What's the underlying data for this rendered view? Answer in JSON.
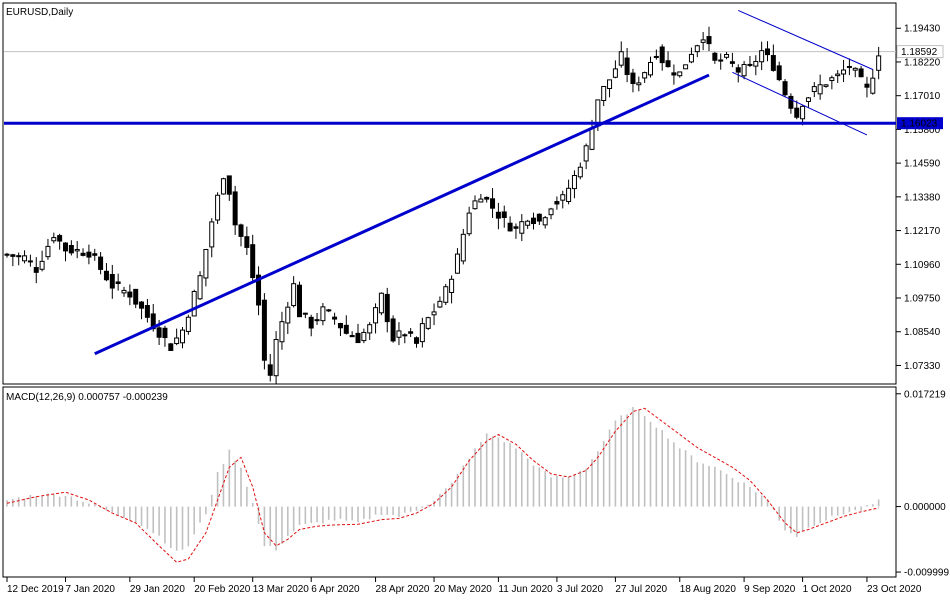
{
  "chart_data": [
    {
      "type": "candlestick",
      "title": "EURUSD,Daily",
      "ylim": [
        1.067,
        1.203
      ],
      "yticks": [
        "1.19430",
        "1.18220",
        "1.17010",
        "1.15800",
        "1.14590",
        "1.13380",
        "1.12170",
        "1.10960",
        "1.09750",
        "1.08540",
        "1.07330"
      ],
      "current_price": {
        "value": 1.18592,
        "label": "1.18592",
        "color": "#c0c0c0"
      },
      "hline": {
        "value": 1.16023,
        "label": "1.16023",
        "color": "#0000cc"
      },
      "trendline": {
        "start": [
          15,
          1.0775
        ],
        "end": [
          120,
          1.1775
        ],
        "color": "#0000cc"
      },
      "channel": [
        {
          "start": [
            125,
            1.2007
          ],
          "end": [
            148,
            1.1795
          ],
          "color": "#0000cc"
        },
        {
          "start": [
            124,
            1.1785
          ],
          "end": [
            147,
            1.156
          ],
          "color": "#0000cc"
        }
      ],
      "x_labels": [
        {
          "i": 0,
          "text": "12 Dec 2019"
        },
        {
          "i": 10,
          "text": "7 Jan 2020"
        },
        {
          "i": 21,
          "text": "29 Jan 2020"
        },
        {
          "i": 32,
          "text": "20 Feb 2020"
        },
        {
          "i": 42,
          "text": "13 Mar 2020"
        },
        {
          "i": 52,
          "text": "6 Apr 2020"
        },
        {
          "i": 63,
          "text": "28 Apr 2020"
        },
        {
          "i": 73,
          "text": "20 May 2020"
        },
        {
          "i": 84,
          "text": "11 Jun 2020"
        },
        {
          "i": 94,
          "text": "3 Jul 2020"
        },
        {
          "i": 104,
          "text": "27 Jul 2020"
        },
        {
          "i": 115,
          "text": "18 Aug 2020"
        },
        {
          "i": 126,
          "text": "9 Sep 2020"
        },
        {
          "i": 136,
          "text": "1 Oct 2020"
        },
        {
          "i": 147,
          "text": "23 Oct 2020"
        }
      ],
      "close_anchors": [
        [
          0,
          1.113
        ],
        [
          3,
          1.112
        ],
        [
          5,
          1.108
        ],
        [
          8,
          1.1205
        ],
        [
          10,
          1.115
        ],
        [
          14,
          1.114
        ],
        [
          18,
          1.102
        ],
        [
          21,
          1.099
        ],
        [
          25,
          1.088
        ],
        [
          28,
          1.08
        ],
        [
          30,
          1.086
        ],
        [
          33,
          1.105
        ],
        [
          35,
          1.125
        ],
        [
          37,
          1.142
        ],
        [
          38,
          1.136
        ],
        [
          39,
          1.124
        ],
        [
          41,
          1.115
        ],
        [
          43,
          1.095
        ],
        [
          44,
          1.075
        ],
        [
          45,
          1.07
        ],
        [
          46,
          1.082
        ],
        [
          48,
          1.096
        ],
        [
          49,
          1.102
        ],
        [
          50,
          1.092
        ],
        [
          52,
          1.088
        ],
        [
          54,
          1.093
        ],
        [
          56,
          1.09
        ],
        [
          58,
          1.085
        ],
        [
          60,
          1.083
        ],
        [
          62,
          1.087
        ],
        [
          64,
          1.098
        ],
        [
          66,
          1.083
        ],
        [
          68,
          1.085
        ],
        [
          70,
          1.081
        ],
        [
          71,
          1.087
        ],
        [
          73,
          1.093
        ],
        [
          75,
          1.1
        ],
        [
          77,
          1.112
        ],
        [
          79,
          1.129
        ],
        [
          81,
          1.135
        ],
        [
          83,
          1.13
        ],
        [
          85,
          1.125
        ],
        [
          87,
          1.122
        ],
        [
          89,
          1.127
        ],
        [
          91,
          1.125
        ],
        [
          93,
          1.131
        ],
        [
          95,
          1.133
        ],
        [
          97,
          1.141
        ],
        [
          99,
          1.151
        ],
        [
          101,
          1.169
        ],
        [
          103,
          1.176
        ],
        [
          105,
          1.184
        ],
        [
          107,
          1.173
        ],
        [
          109,
          1.179
        ],
        [
          111,
          1.186
        ],
        [
          113,
          1.18
        ],
        [
          115,
          1.178
        ],
        [
          117,
          1.186
        ],
        [
          119,
          1.192
        ],
        [
          121,
          1.182
        ],
        [
          123,
          1.183
        ],
        [
          125,
          1.179
        ],
        [
          127,
          1.18
        ],
        [
          129,
          1.186
        ],
        [
          131,
          1.181
        ],
        [
          133,
          1.171
        ],
        [
          135,
          1.163
        ],
        [
          136,
          1.168
        ],
        [
          138,
          1.172
        ],
        [
          140,
          1.175
        ],
        [
          142,
          1.177
        ],
        [
          144,
          1.181
        ],
        [
          146,
          1.175
        ],
        [
          147,
          1.172
        ],
        [
          148,
          1.178
        ],
        [
          149,
          1.1859
        ]
      ]
    },
    {
      "type": "histogram+line",
      "title": "MACD(12,26,9) 0.000757 -0.000239",
      "ylim": [
        -0.0106,
        0.0181
      ],
      "yticks": [
        "0.017219",
        "0.000000",
        "-0.009999"
      ],
      "hist_color": "#c0c0c0",
      "signal_color": "#e01010",
      "hist_anchors": [
        [
          0,
          0.001
        ],
        [
          5,
          0.0018
        ],
        [
          10,
          0.0018
        ],
        [
          14,
          0.0005
        ],
        [
          18,
          -0.001
        ],
        [
          22,
          -0.0022
        ],
        [
          26,
          -0.0045
        ],
        [
          29,
          -0.007
        ],
        [
          31,
          -0.006
        ],
        [
          34,
          -0.001
        ],
        [
          36,
          0.005
        ],
        [
          38,
          0.0085
        ],
        [
          40,
          0.006
        ],
        [
          42,
          0.0005
        ],
        [
          44,
          -0.006
        ],
        [
          46,
          -0.0065
        ],
        [
          48,
          -0.0045
        ],
        [
          50,
          -0.003
        ],
        [
          53,
          -0.0025
        ],
        [
          56,
          -0.002
        ],
        [
          60,
          -0.0025
        ],
        [
          64,
          -0.001
        ],
        [
          67,
          -0.0015
        ],
        [
          70,
          -0.0005
        ],
        [
          73,
          0.001
        ],
        [
          76,
          0.0035
        ],
        [
          79,
          0.0075
        ],
        [
          82,
          0.011
        ],
        [
          84,
          0.0105
        ],
        [
          87,
          0.009
        ],
        [
          90,
          0.0065
        ],
        [
          93,
          0.0045
        ],
        [
          96,
          0.0045
        ],
        [
          99,
          0.006
        ],
        [
          101,
          0.0085
        ],
        [
          104,
          0.013
        ],
        [
          107,
          0.015
        ],
        [
          109,
          0.014
        ],
        [
          112,
          0.0115
        ],
        [
          115,
          0.009
        ],
        [
          118,
          0.007
        ],
        [
          121,
          0.006
        ],
        [
          124,
          0.0045
        ],
        [
          127,
          0.003
        ],
        [
          130,
          0.001
        ],
        [
          133,
          -0.0035
        ],
        [
          135,
          -0.0045
        ],
        [
          137,
          -0.003
        ],
        [
          140,
          -0.002
        ],
        [
          143,
          -0.001
        ],
        [
          146,
          -0.0005
        ],
        [
          149,
          0.0008
        ]
      ],
      "signal_anchors": [
        [
          0,
          0.0005
        ],
        [
          5,
          0.0015
        ],
        [
          10,
          0.0022
        ],
        [
          14,
          0.001
        ],
        [
          18,
          -0.001
        ],
        [
          22,
          -0.0025
        ],
        [
          26,
          -0.006
        ],
        [
          29,
          -0.0085
        ],
        [
          31,
          -0.008
        ],
        [
          34,
          -0.004
        ],
        [
          36,
          0.001
        ],
        [
          38,
          0.006
        ],
        [
          40,
          0.0075
        ],
        [
          42,
          0.003
        ],
        [
          44,
          -0.004
        ],
        [
          46,
          -0.006
        ],
        [
          48,
          -0.005
        ],
        [
          50,
          -0.0035
        ],
        [
          53,
          -0.003
        ],
        [
          56,
          -0.0028
        ],
        [
          60,
          -0.0027
        ],
        [
          64,
          -0.002
        ],
        [
          67,
          -0.0018
        ],
        [
          70,
          -0.001
        ],
        [
          73,
          0.0005
        ],
        [
          76,
          0.003
        ],
        [
          79,
          0.007
        ],
        [
          82,
          0.01
        ],
        [
          84,
          0.011
        ],
        [
          87,
          0.0095
        ],
        [
          90,
          0.007
        ],
        [
          93,
          0.005
        ],
        [
          96,
          0.0045
        ],
        [
          99,
          0.0055
        ],
        [
          101,
          0.0075
        ],
        [
          104,
          0.0115
        ],
        [
          107,
          0.0145
        ],
        [
          109,
          0.015
        ],
        [
          112,
          0.013
        ],
        [
          115,
          0.011
        ],
        [
          118,
          0.009
        ],
        [
          121,
          0.0075
        ],
        [
          124,
          0.006
        ],
        [
          127,
          0.004
        ],
        [
          130,
          0.001
        ],
        [
          133,
          -0.0025
        ],
        [
          135,
          -0.004
        ],
        [
          137,
          -0.0035
        ],
        [
          140,
          -0.0025
        ],
        [
          143,
          -0.0015
        ],
        [
          146,
          -0.0008
        ],
        [
          149,
          -0.0002
        ]
      ]
    }
  ]
}
